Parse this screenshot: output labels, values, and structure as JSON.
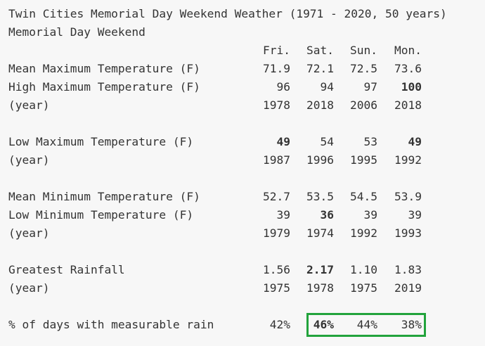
{
  "title": "Twin Cities Memorial Day Weekend Weather (1971 - 2020, 50 years)",
  "subtitle": "Memorial Day Weekend",
  "days": [
    "Fri.",
    "Sat.",
    "Sun.",
    "Mon."
  ],
  "rows": [
    {
      "label": "Mean Maximum Temperature (F)",
      "values": [
        "71.9",
        "72.1",
        "72.5",
        "73.6"
      ],
      "bold": []
    },
    {
      "label": "High Maximum Temperature (F)",
      "values": [
        "96",
        "94",
        "97",
        "100"
      ],
      "bold": [
        3
      ]
    },
    {
      "label": "(year)",
      "values": [
        "1978",
        "2018",
        "2006",
        "2018"
      ],
      "bold": []
    },
    {
      "label": "Low Maximum Temperature (F)",
      "values": [
        "49",
        "54",
        "53",
        "49"
      ],
      "bold": [
        0,
        3
      ]
    },
    {
      "label": "(year)",
      "values": [
        "1987",
        "1996",
        "1995",
        "1992"
      ],
      "bold": []
    },
    {
      "label": "Mean Minimum Temperature (F)",
      "values": [
        "52.7",
        "53.5",
        "54.5",
        "53.9"
      ],
      "bold": []
    },
    {
      "label": "Low Minimum Temperature (F)",
      "values": [
        "39",
        "36",
        "39",
        "39"
      ],
      "bold": [
        1
      ]
    },
    {
      "label": "(year)",
      "values": [
        "1979",
        "1974",
        "1992",
        "1993"
      ],
      "bold": []
    },
    {
      "label": "Greatest Rainfall",
      "values": [
        "1.56",
        "2.17",
        "1.10",
        "1.83"
      ],
      "bold": [
        1
      ]
    },
    {
      "label": "(year)",
      "values": [
        "1975",
        "1978",
        "1975",
        "2019"
      ],
      "bold": []
    },
    {
      "label": "% of days with measurable rain",
      "values": [
        "42%",
        "46%",
        "44%",
        "38%"
      ],
      "bold": [
        1
      ]
    }
  ],
  "highlight_color": "#22a33c"
}
